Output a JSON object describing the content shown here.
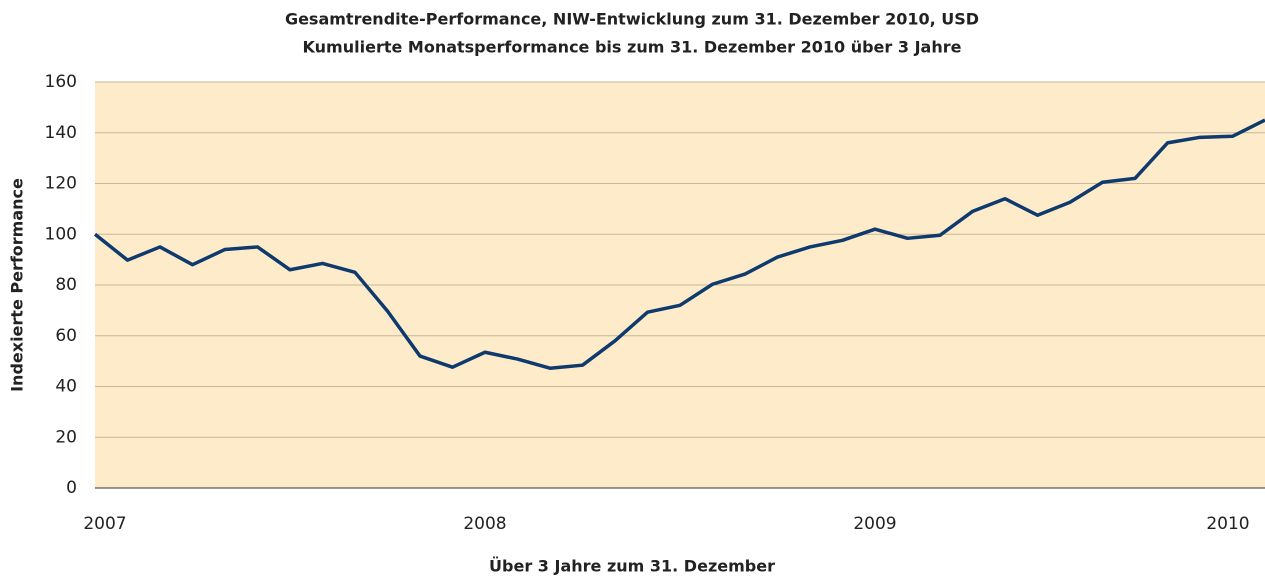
{
  "chart_data": {
    "type": "line",
    "title": "Gesamtrendite-Performance, NIW-Entwicklung zum 31. Dezember 2010, USD",
    "subtitle": "Kumulierte Monatsperformance bis zum 31. Dezember 2010 über 3 Jahre",
    "y_label": "Indexierte Performance",
    "x_label": "Über 3 Jahre zum 31. Dezember",
    "categories": [
      "2007",
      null,
      null,
      null,
      null,
      null,
      null,
      null,
      null,
      null,
      null,
      null,
      "2008",
      null,
      null,
      null,
      null,
      null,
      null,
      null,
      null,
      null,
      null,
      null,
      "2009",
      null,
      null,
      null,
      null,
      null,
      null,
      null,
      null,
      null,
      null,
      null,
      "2010"
    ],
    "series": [
      {
        "name": "NIW",
        "color": "#0f3a6e",
        "values": [
          100,
          89.8,
          95,
          88,
          94,
          95,
          86,
          88.5,
          85,
          69.7,
          52,
          47.6,
          53.5,
          50.8,
          47.2,
          48.4,
          58,
          69.3,
          72,
          80.3,
          84.3,
          91,
          95,
          97.6,
          102,
          98.4,
          99.6,
          109,
          114,
          107.5,
          112.6,
          120.5,
          122,
          136,
          138.2,
          138.6,
          145
        ]
      }
    ],
    "ylim": [
      0,
      160
    ],
    "yticks": [
      0,
      20,
      40,
      60,
      80,
      100,
      120,
      140,
      160
    ],
    "grid": true,
    "plot_background": "#fdebc9"
  }
}
